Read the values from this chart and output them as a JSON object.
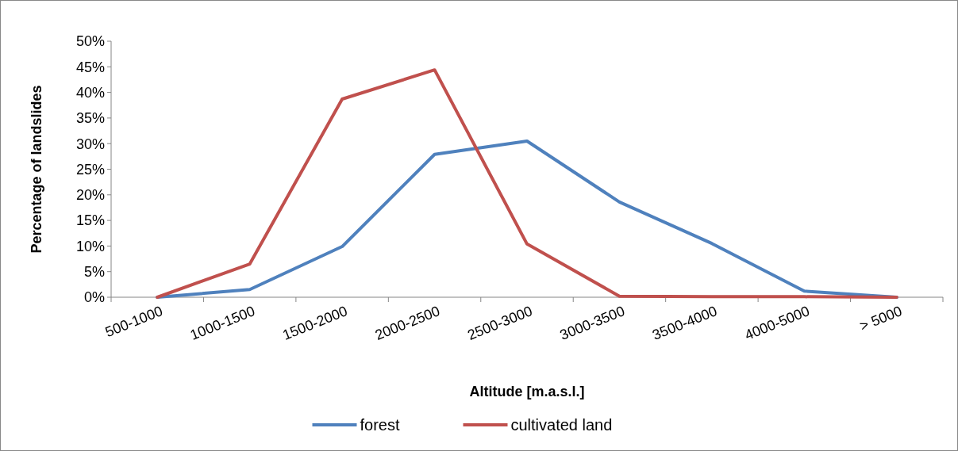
{
  "chart_data": {
    "type": "line",
    "xlabel": "Altitude [m.a.s.l.]",
    "ylabel": "Percentage of landslides",
    "categories": [
      "500-1000",
      "1000-1500",
      "1500-2000",
      "2000-2500",
      "2500-3000",
      "3000-3500",
      "3500-4000",
      "4000-5000",
      "> 5000"
    ],
    "series": [
      {
        "name": "forest",
        "color": "#4f81bd",
        "values": [
          0,
          1.5,
          9.9,
          27.9,
          30.5,
          18.6,
          10.5,
          1.2,
          0
        ]
      },
      {
        "name": "cultivated land",
        "color": "#c0504d",
        "values": [
          0,
          6.5,
          38.7,
          44.4,
          10.4,
          0.2,
          0.1,
          0.1,
          0
        ]
      }
    ],
    "ylim": [
      0,
      50
    ],
    "yticks": [
      {
        "value": 0,
        "label": "0%"
      },
      {
        "value": 5,
        "label": "5%"
      },
      {
        "value": 10,
        "label": "10%"
      },
      {
        "value": 15,
        "label": "15%"
      },
      {
        "value": 20,
        "label": "20%"
      },
      {
        "value": 25,
        "label": "25%"
      },
      {
        "value": 30,
        "label": "30%"
      },
      {
        "value": 35,
        "label": "35%"
      },
      {
        "value": 40,
        "label": "40%"
      },
      {
        "value": 45,
        "label": "45%"
      },
      {
        "value": 50,
        "label": "50%"
      }
    ],
    "grid": false,
    "legend": "bottom",
    "marker": "none",
    "line_style": "solid"
  }
}
